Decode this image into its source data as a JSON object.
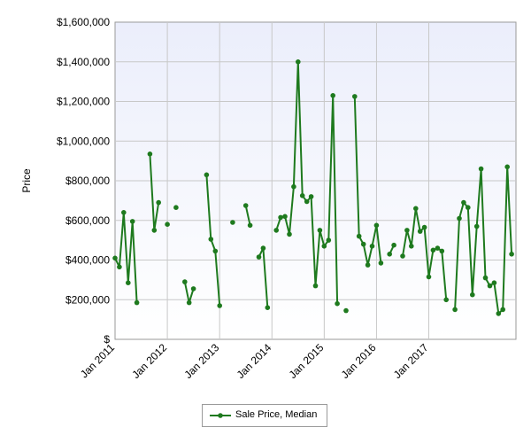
{
  "chart_data": {
    "type": "line",
    "title": "",
    "xlabel": "",
    "ylabel": "Price",
    "ylim": [
      0,
      1600000
    ],
    "y_ticks": [
      0,
      200000,
      400000,
      600000,
      800000,
      1000000,
      1200000,
      1400000,
      1600000
    ],
    "y_tick_labels": [
      "$",
      "$200,000",
      "$400,000",
      "$600,000",
      "$800,000",
      "$1,000,000",
      "$1,200,000",
      "$1,400,000",
      "$1,600,000"
    ],
    "x_tick_labels": [
      "Jan 2011",
      "Jan 2012",
      "Jan 2013",
      "Jan 2014",
      "Jan 2015",
      "Jan 2016",
      "Jan 2017"
    ],
    "grid": true,
    "legend": "bottom-center",
    "series_color": "#1e7a1e",
    "series": [
      {
        "name": "Sale Price, Median",
        "segments": [
          [
            [
              "2011-01",
              410000
            ],
            [
              "2011-02",
              365000
            ],
            [
              "2011-03",
              640000
            ],
            [
              "2011-04",
              285000
            ],
            [
              "2011-05",
              595000
            ],
            [
              "2011-06",
              185000
            ]
          ],
          [
            [
              "2011-09",
              935000
            ],
            [
              "2011-10",
              550000
            ],
            [
              "2011-11",
              690000
            ]
          ],
          [
            [
              "2012-01",
              580000
            ]
          ],
          [
            [
              "2012-03",
              665000
            ]
          ],
          [
            [
              "2012-05",
              290000
            ],
            [
              "2012-06",
              185000
            ],
            [
              "2012-07",
              255000
            ]
          ],
          [
            [
              "2012-10",
              830000
            ],
            [
              "2012-11",
              505000
            ],
            [
              "2012-12",
              445000
            ],
            [
              "2013-01",
              170000
            ]
          ],
          [
            [
              "2013-04",
              590000
            ]
          ],
          [
            [
              "2013-07",
              675000
            ],
            [
              "2013-08",
              575000
            ]
          ],
          [
            [
              "2013-10",
              415000
            ],
            [
              "2013-11",
              460000
            ],
            [
              "2013-12",
              160000
            ]
          ],
          [
            [
              "2014-02",
              550000
            ],
            [
              "2014-03",
              615000
            ],
            [
              "2014-04",
              620000
            ],
            [
              "2014-05",
              530000
            ],
            [
              "2014-06",
              770000
            ],
            [
              "2014-07",
              1400000
            ],
            [
              "2014-08",
              725000
            ],
            [
              "2014-09",
              695000
            ],
            [
              "2014-10",
              720000
            ],
            [
              "2014-11",
              270000
            ],
            [
              "2014-12",
              550000
            ],
            [
              "2015-01",
              470000
            ],
            [
              "2015-02",
              500000
            ],
            [
              "2015-03",
              1230000
            ],
            [
              "2015-04",
              180000
            ]
          ],
          [
            [
              "2015-06",
              145000
            ]
          ],
          [
            [
              "2015-08",
              1225000
            ],
            [
              "2015-09",
              520000
            ],
            [
              "2015-10",
              480000
            ],
            [
              "2015-11",
              375000
            ],
            [
              "2015-12",
              470000
            ],
            [
              "2016-01",
              575000
            ],
            [
              "2016-02",
              385000
            ]
          ],
          [
            [
              "2016-04",
              430000
            ],
            [
              "2016-05",
              475000
            ]
          ],
          [
            [
              "2016-07",
              420000
            ],
            [
              "2016-08",
              550000
            ],
            [
              "2016-09",
              470000
            ],
            [
              "2016-10",
              660000
            ],
            [
              "2016-11",
              545000
            ],
            [
              "2016-12",
              565000
            ],
            [
              "2017-01",
              315000
            ],
            [
              "2017-02",
              450000
            ],
            [
              "2017-03",
              460000
            ],
            [
              "2017-04",
              445000
            ],
            [
              "2017-05",
              200000
            ]
          ],
          [
            [
              "2017-07",
              150000
            ],
            [
              "2017-08",
              610000
            ],
            [
              "2017-09",
              690000
            ],
            [
              "2017-10",
              665000
            ],
            [
              "2017-11",
              225000
            ],
            [
              "2017-12",
              570000
            ],
            [
              "2018-01",
              860000
            ],
            [
              "2018-02",
              310000
            ],
            [
              "2018-03",
              270000
            ],
            [
              "2018-04",
              285000
            ],
            [
              "2018-05",
              130000
            ],
            [
              "2018-06",
              150000
            ],
            [
              "2018-07",
              870000
            ],
            [
              "2018-08",
              430000
            ]
          ]
        ]
      }
    ]
  }
}
